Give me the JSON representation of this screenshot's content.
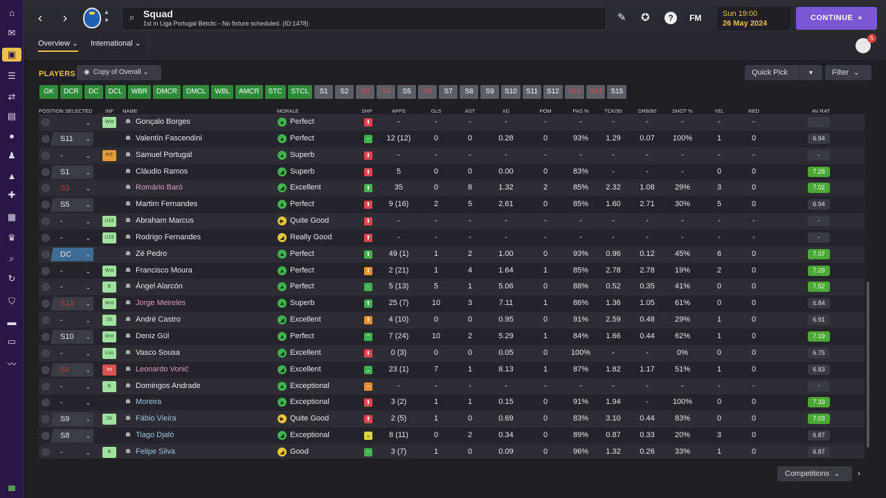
{
  "sidebar": {
    "icons": [
      "home-icon",
      "inbox-icon",
      "squad-icon",
      "clipboard-icon",
      "transfers-icon",
      "report-icon",
      "ball-icon",
      "staff-icon",
      "training-icon",
      "medical-icon",
      "calendar-icon",
      "trophy-icon",
      "search-icon",
      "refresh-icon",
      "shield-icon",
      "briefcase-icon",
      "finance-icon",
      "chart-icon"
    ]
  },
  "header": {
    "title": "Squad",
    "subtitle": "1st in Liga Portugal Betclic - No fixture scheduled. (ID:1478)",
    "fm_logo": "FM",
    "date_time": "Sun 19:00",
    "date_day": "26 May 2024",
    "continue_label": "CONTINUE",
    "notification_count": "5",
    "tabs": [
      "Overview",
      "International"
    ]
  },
  "players": {
    "label": "PLAYERS",
    "view": "Copy of Overall",
    "quick_pick": "Quick Pick",
    "filter": "Filter",
    "competitions": "Competitions"
  },
  "position_chips": [
    {
      "label": "GK",
      "state": "green"
    },
    {
      "label": "DCR",
      "state": "green"
    },
    {
      "label": "DC",
      "state": "green"
    },
    {
      "label": "DCL",
      "state": "green"
    },
    {
      "label": "WBR",
      "state": "green"
    },
    {
      "label": "DMCR",
      "state": "green"
    },
    {
      "label": "DMCL",
      "state": "green"
    },
    {
      "label": "WBL",
      "state": "green"
    },
    {
      "label": "AMCR",
      "state": "green"
    },
    {
      "label": "STC",
      "state": "green"
    },
    {
      "label": "STCL",
      "state": "green"
    },
    {
      "label": "S1",
      "state": "grey"
    },
    {
      "label": "S2",
      "state": "grey"
    },
    {
      "label": "S3",
      "state": "red"
    },
    {
      "label": "S4",
      "state": "red"
    },
    {
      "label": "S5",
      "state": "grey"
    },
    {
      "label": "S6",
      "state": "red"
    },
    {
      "label": "S7",
      "state": "grey"
    },
    {
      "label": "S8",
      "state": "grey"
    },
    {
      "label": "S9",
      "state": "grey"
    },
    {
      "label": "S10",
      "state": "grey"
    },
    {
      "label": "S11",
      "state": "grey"
    },
    {
      "label": "S12",
      "state": "grey"
    },
    {
      "label": "S13",
      "state": "red"
    },
    {
      "label": "S14",
      "state": "red"
    },
    {
      "label": "S15",
      "state": "grey"
    }
  ],
  "table": {
    "columns": [
      "POSITION SELECTED",
      "INF",
      "NAME",
      "MORALE",
      "SHP",
      "APPS",
      "GLS",
      "AST",
      "XG",
      "POM",
      "PAS %",
      "TCK/90",
      "DRB/90",
      "SHOT %",
      "YEL",
      "RED",
      "AV RAT"
    ],
    "rows": [
      {
        "pos": "",
        "pos_style": "dash",
        "inf": "Wnt",
        "inf_style": "green",
        "name": "Gonçalo Borges",
        "name_style": "",
        "morale": "Perfect",
        "mor_style": "green",
        "mor_glyph": "▲",
        "shp_style": "red",
        "shp_glyph": "⬆",
        "apps": "-",
        "gls": "-",
        "ast": "-",
        "xg": "-",
        "pom": "-",
        "pas": "-",
        "tck": "-",
        "drb": "-",
        "shot": "-",
        "yel": "-",
        "red": "-",
        "avr": "",
        "avr_style": ""
      },
      {
        "pos": "S11",
        "pos_style": "",
        "inf": "",
        "inf_style": "",
        "name": "Valentín Fascendini",
        "name_style": "",
        "morale": "Perfect",
        "mor_style": "green",
        "mor_glyph": "▲",
        "shp_style": "green",
        "shp_glyph": "−",
        "apps": "12 (12)",
        "gls": "0",
        "ast": "0",
        "xg": "0.28",
        "pom": "0",
        "pas": "93%",
        "tck": "1.29",
        "drb": "0.07",
        "shot": "100%",
        "yel": "1",
        "red": "0",
        "avr": "6.94",
        "avr_style": ""
      },
      {
        "pos": "-",
        "pos_style": "dash",
        "inf": "FtT",
        "inf_style": "orange",
        "name": "Samuel Portugal",
        "name_style": "",
        "morale": "Superb",
        "mor_style": "green",
        "mor_glyph": "▲",
        "shp_style": "red",
        "shp_glyph": "⬆",
        "apps": "-",
        "gls": "-",
        "ast": "-",
        "xg": "-",
        "pom": "-",
        "pas": "-",
        "tck": "-",
        "drb": "-",
        "shot": "-",
        "yel": "-",
        "red": "-",
        "avr": "-",
        "avr_style": ""
      },
      {
        "pos": "S1",
        "pos_style": "",
        "inf": "",
        "inf_style": "",
        "name": "Cláudio Ramos",
        "name_style": "",
        "morale": "Superb",
        "mor_style": "green",
        "mor_glyph": "◢",
        "shp_style": "red",
        "shp_glyph": "⬆",
        "apps": "5",
        "gls": "0",
        "ast": "0",
        "xg": "0.00",
        "pom": "0",
        "pas": "83%",
        "tck": "-",
        "drb": "-",
        "shot": "-",
        "yel": "0",
        "red": "0",
        "avr": "7.28",
        "avr_style": "green"
      },
      {
        "pos": "S3",
        "pos_style": "dash red",
        "inf": "",
        "inf_style": "",
        "name": "Romário Baró",
        "name_style": "pink",
        "morale": "Excellent",
        "mor_style": "green",
        "mor_glyph": "◢",
        "shp_style": "green",
        "shp_glyph": "⬆",
        "apps": "35",
        "gls": "0",
        "ast": "8",
        "xg": "1.32",
        "pom": "2",
        "pas": "85%",
        "tck": "2.32",
        "drb": "1.08",
        "shot": "29%",
        "yel": "3",
        "red": "0",
        "avr": "7.02",
        "avr_style": "green"
      },
      {
        "pos": "S5",
        "pos_style": "",
        "inf": "",
        "inf_style": "",
        "name": "Martim Fernandes",
        "name_style": "",
        "morale": "Perfect",
        "mor_style": "green",
        "mor_glyph": "▲",
        "shp_style": "red",
        "shp_glyph": "⬆",
        "apps": "9 (16)",
        "gls": "2",
        "ast": "5",
        "xg": "2.61",
        "pom": "0",
        "pas": "85%",
        "tck": "1.60",
        "drb": "2.71",
        "shot": "30%",
        "yel": "5",
        "red": "0",
        "avr": "6.94",
        "avr_style": ""
      },
      {
        "pos": "-",
        "pos_style": "dash",
        "inf": "U19",
        "inf_style": "green",
        "name": "Abraham Marcus",
        "name_style": "",
        "morale": "Quite Good",
        "mor_style": "yellow",
        "mor_glyph": "▶",
        "shp_style": "red",
        "shp_glyph": "⬆",
        "apps": "-",
        "gls": "-",
        "ast": "-",
        "xg": "-",
        "pom": "-",
        "pas": "-",
        "tck": "-",
        "drb": "-",
        "shot": "-",
        "yel": "-",
        "red": "-",
        "avr": "-",
        "avr_style": ""
      },
      {
        "pos": "-",
        "pos_style": "dash",
        "inf": "U19",
        "inf_style": "green",
        "name": "Rodrigo Fernandes",
        "name_style": "",
        "morale": "Really Good",
        "mor_style": "yellow",
        "mor_glyph": "◢",
        "shp_style": "red",
        "shp_glyph": "⬆",
        "apps": "-",
        "gls": "-",
        "ast": "-",
        "xg": "-",
        "pom": "-",
        "pas": "-",
        "tck": "-",
        "drb": "-",
        "shot": "-",
        "yel": "-",
        "red": "-",
        "avr": "-",
        "avr_style": ""
      },
      {
        "pos": "DC",
        "pos_style": "blue",
        "inf": "",
        "inf_style": "",
        "name": "Zé Pedro",
        "name_style": "",
        "morale": "Perfect",
        "mor_style": "green",
        "mor_glyph": "▲",
        "shp_style": "green",
        "shp_glyph": "⬆",
        "apps": "49 (1)",
        "gls": "1",
        "ast": "2",
        "xg": "1.00",
        "pom": "0",
        "pas": "93%",
        "tck": "0.96",
        "drb": "0.12",
        "shot": "45%",
        "yel": "6",
        "red": "0",
        "avr": "7.07",
        "avr_style": "green"
      },
      {
        "pos": "-",
        "pos_style": "dash",
        "inf": "Wnt",
        "inf_style": "green",
        "name": "Francisco Moura",
        "name_style": "",
        "morale": "Perfect",
        "mor_style": "green",
        "mor_glyph": "▲",
        "shp_style": "orange",
        "shp_glyph": "⬆",
        "apps": "2 (21)",
        "gls": "1",
        "ast": "4",
        "xg": "1.64",
        "pom": "1",
        "pas": "85%",
        "tck": "2.78",
        "drb": "2.78",
        "shot": "19%",
        "yel": "2",
        "red": "0",
        "avr": "7.29",
        "avr_style": "green"
      },
      {
        "pos": "-",
        "pos_style": "dash",
        "inf": "B",
        "inf_style": "green",
        "name": "Ángel Alarcón",
        "name_style": "",
        "morale": "Perfect",
        "mor_style": "green",
        "mor_glyph": "▲",
        "shp_style": "green",
        "shp_glyph": "−",
        "apps": "5 (13)",
        "gls": "5",
        "ast": "1",
        "xg": "5.06",
        "pom": "0",
        "pas": "88%",
        "tck": "0.52",
        "drb": "0.35",
        "shot": "41%",
        "yel": "0",
        "red": "0",
        "avr": "7.52",
        "avr_style": "green"
      },
      {
        "pos": "S13",
        "pos_style": "red",
        "inf": "Wnt",
        "inf_style": "green",
        "name": "Jorge Meireles",
        "name_style": "pink",
        "morale": "Superb",
        "mor_style": "green",
        "mor_glyph": "▲",
        "shp_style": "green",
        "shp_glyph": "⬆",
        "apps": "25 (7)",
        "gls": "10",
        "ast": "3",
        "xg": "7.11",
        "pom": "1",
        "pas": "86%",
        "tck": "1.36",
        "drb": "1.05",
        "shot": "61%",
        "yel": "0",
        "red": "0",
        "avr": "6.84",
        "avr_style": ""
      },
      {
        "pos": "-",
        "pos_style": "dash",
        "inf": "Slt",
        "inf_style": "green",
        "name": "André Castro",
        "name_style": "",
        "morale": "Excellent",
        "mor_style": "green",
        "mor_glyph": "◢",
        "shp_style": "orange",
        "shp_glyph": "⬆",
        "apps": "4 (10)",
        "gls": "0",
        "ast": "0",
        "xg": "0.95",
        "pom": "0",
        "pas": "91%",
        "tck": "2.59",
        "drb": "0.48",
        "shot": "29%",
        "yel": "1",
        "red": "0",
        "avr": "6.91",
        "avr_style": ""
      },
      {
        "pos": "S10",
        "pos_style": "",
        "inf": "Wnt",
        "inf_style": "green",
        "name": "Deniz Gül",
        "name_style": "",
        "morale": "Perfect",
        "mor_style": "green",
        "mor_glyph": "▲",
        "shp_style": "green",
        "shp_glyph": "⌃",
        "apps": "7 (24)",
        "gls": "10",
        "ast": "2",
        "xg": "5.29",
        "pom": "1",
        "pas": "84%",
        "tck": "1.66",
        "drb": "0.44",
        "shot": "62%",
        "yel": "1",
        "red": "0",
        "avr": "7.19",
        "avr_style": "green"
      },
      {
        "pos": "-",
        "pos_style": "dash",
        "inf": "Loo",
        "inf_style": "green",
        "name": "Vasco Sousa",
        "name_style": "",
        "morale": "Excellent",
        "mor_style": "green",
        "mor_glyph": "◢",
        "shp_style": "red",
        "shp_glyph": "⬆",
        "apps": "0 (3)",
        "gls": "0",
        "ast": "0",
        "xg": "0.05",
        "pom": "0",
        "pas": "100%",
        "tck": "-",
        "drb": "-",
        "shot": "0%",
        "yel": "0",
        "red": "0",
        "avr": "6.75",
        "avr_style": ""
      },
      {
        "pos": "S4",
        "pos_style": "red",
        "inf": "Int",
        "inf_style": "red",
        "name": "Leonardo Vonić",
        "name_style": "pink",
        "morale": "Excellent",
        "mor_style": "green",
        "mor_glyph": "◢",
        "shp_style": "green",
        "shp_glyph": "⌄",
        "apps": "23 (1)",
        "gls": "7",
        "ast": "1",
        "xg": "8.13",
        "pom": "1",
        "pas": "87%",
        "tck": "1.82",
        "drb": "1.17",
        "shot": "51%",
        "yel": "1",
        "red": "0",
        "avr": "6.83",
        "avr_style": ""
      },
      {
        "pos": "-",
        "pos_style": "dash",
        "inf": "B",
        "inf_style": "green",
        "name": "Domingos Andrade",
        "name_style": "",
        "morale": "Exceptional",
        "mor_style": "green",
        "mor_glyph": "▲",
        "shp_style": "orange",
        "shp_glyph": "−",
        "apps": "-",
        "gls": "-",
        "ast": "-",
        "xg": "-",
        "pom": "-",
        "pas": "-",
        "tck": "-",
        "drb": "-",
        "shot": "-",
        "yel": "-",
        "red": "-",
        "avr": "-",
        "avr_style": ""
      },
      {
        "pos": "-",
        "pos_style": "dash",
        "inf": "",
        "inf_style": "",
        "name": "Moreira",
        "name_style": "link",
        "morale": "Exceptional",
        "mor_style": "green",
        "mor_glyph": "▲",
        "shp_style": "red",
        "shp_glyph": "⬆",
        "apps": "3 (2)",
        "gls": "1",
        "ast": "1",
        "xg": "0.15",
        "pom": "0",
        "pas": "91%",
        "tck": "1.94",
        "drb": "-",
        "shot": "100%",
        "yel": "0",
        "red": "0",
        "avr": "7.33",
        "avr_style": "green"
      },
      {
        "pos": "S9",
        "pos_style": "",
        "inf": "Slt",
        "inf_style": "green",
        "name": "Fábio Vieira",
        "name_style": "link",
        "morale": "Quite Good",
        "mor_style": "yellow",
        "mor_glyph": "▶",
        "shp_style": "red",
        "shp_glyph": "⬆",
        "apps": "2 (5)",
        "gls": "1",
        "ast": "0",
        "xg": "0.69",
        "pom": "0",
        "pas": "83%",
        "tck": "3.10",
        "drb": "0.44",
        "shot": "83%",
        "yel": "0",
        "red": "0",
        "avr": "7.03",
        "avr_style": "green"
      },
      {
        "pos": "S8",
        "pos_style": "",
        "inf": "",
        "inf_style": "",
        "name": "Tiago Djaló",
        "name_style": "link",
        "morale": "Exceptional",
        "mor_style": "green",
        "mor_glyph": "◢",
        "shp_style": "yellow",
        "shp_glyph": "⌄",
        "apps": "8 (11)",
        "gls": "0",
        "ast": "2",
        "xg": "0.34",
        "pom": "0",
        "pas": "89%",
        "tck": "0.87",
        "drb": "0.33",
        "shot": "20%",
        "yel": "3",
        "red": "0",
        "avr": "6.87",
        "avr_style": ""
      },
      {
        "pos": "-",
        "pos_style": "dash",
        "inf": "B",
        "inf_style": "green",
        "name": "Felipe Silva",
        "name_style": "link",
        "morale": "Good",
        "mor_style": "yellow",
        "mor_glyph": "◢",
        "shp_style": "green",
        "shp_glyph": "−",
        "apps": "3 (7)",
        "gls": "1",
        "ast": "0",
        "xg": "0.09",
        "pom": "0",
        "pas": "96%",
        "tck": "1.32",
        "drb": "0.26",
        "shot": "33%",
        "yel": "1",
        "red": "0",
        "avr": "6.87",
        "avr_style": ""
      }
    ]
  }
}
